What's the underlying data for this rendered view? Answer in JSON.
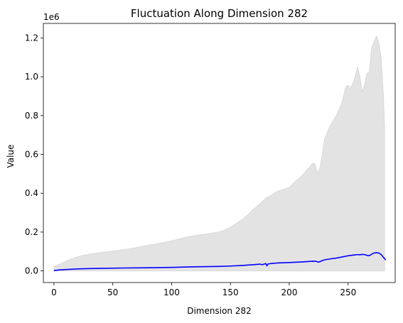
{
  "chart_data": {
    "type": "area",
    "title": "Fluctuation Along Dimension 282",
    "xlabel": "Dimension 282",
    "ylabel": "Value",
    "y_offset_text": "1e6",
    "xlim": [
      -9,
      290
    ],
    "ylim": [
      -60000,
      1275000
    ],
    "x_ticks": [
      0,
      50,
      100,
      150,
      200,
      250
    ],
    "x_tick_labels": [
      "0",
      "50",
      "100",
      "150",
      "200",
      "250"
    ],
    "y_ticks": [
      0,
      200000,
      400000,
      600000,
      800000,
      1000000,
      1200000
    ],
    "y_tick_labels": [
      "0.0",
      "0.2",
      "0.4",
      "0.6",
      "0.8",
      "1.0",
      "1.2"
    ],
    "grid": false,
    "colors": {
      "line": "#0000ff",
      "band": "#d9d9d9"
    },
    "series": [
      {
        "kind": "band",
        "x": [
          0,
          5,
          10,
          15,
          20,
          25,
          30,
          40,
          50,
          60,
          70,
          80,
          90,
          100,
          110,
          120,
          130,
          140,
          145,
          150,
          155,
          160,
          165,
          170,
          175,
          180,
          185,
          190,
          195,
          200,
          205,
          210,
          215,
          220,
          222,
          224,
          226,
          228,
          230,
          235,
          240,
          245,
          248,
          250,
          252,
          255,
          258,
          260,
          262,
          264,
          266,
          268,
          270,
          272,
          274,
          276,
          278,
          280,
          281
        ],
        "upper": [
          22000,
          35000,
          50000,
          62000,
          72000,
          80000,
          86000,
          95000,
          102000,
          110000,
          120000,
          132000,
          142000,
          155000,
          170000,
          183000,
          190000,
          200000,
          210000,
          225000,
          245000,
          265000,
          290000,
          320000,
          345000,
          375000,
          390000,
          410000,
          420000,
          430000,
          460000,
          485000,
          520000,
          555000,
          550000,
          500000,
          530000,
          600000,
          680000,
          750000,
          800000,
          870000,
          950000,
          955000,
          940000,
          980000,
          1050000,
          1000000,
          920000,
          960000,
          1020000,
          1020000,
          1150000,
          1180000,
          1210000,
          1180000,
          1100000,
          900000,
          740000
        ],
        "lower": [
          0,
          0,
          0,
          0,
          0,
          0,
          0,
          0,
          0,
          0,
          0,
          0,
          0,
          0,
          0,
          0,
          0,
          0,
          0,
          0,
          0,
          0,
          0,
          0,
          0,
          0,
          0,
          0,
          0,
          0,
          0,
          0,
          0,
          0,
          0,
          0,
          0,
          0,
          0,
          0,
          0,
          0,
          0,
          0,
          0,
          0,
          0,
          0,
          0,
          0,
          0,
          0,
          0,
          0,
          0,
          0,
          0,
          0,
          0
        ]
      },
      {
        "kind": "line",
        "x": [
          0,
          5,
          10,
          20,
          30,
          40,
          60,
          80,
          100,
          120,
          140,
          150,
          160,
          170,
          175,
          177,
          180,
          181,
          182,
          185,
          190,
          200,
          210,
          220,
          223,
          225,
          228,
          230,
          235,
          240,
          245,
          250,
          255,
          258,
          260,
          262,
          264,
          266,
          268,
          270,
          272,
          274,
          276,
          278,
          280,
          282
        ],
        "y": [
          2000,
          5000,
          7000,
          10000,
          12000,
          13000,
          15000,
          16000,
          18000,
          21000,
          23000,
          25000,
          28000,
          32000,
          35000,
          32000,
          38000,
          26000,
          36000,
          38000,
          41000,
          43000,
          46000,
          50000,
          49000,
          45000,
          53000,
          57000,
          62000,
          66000,
          72000,
          78000,
          82000,
          84000,
          83000,
          85000,
          84000,
          80000,
          78000,
          86000,
          92000,
          94000,
          92000,
          85000,
          70000,
          56000
        ]
      }
    ]
  }
}
